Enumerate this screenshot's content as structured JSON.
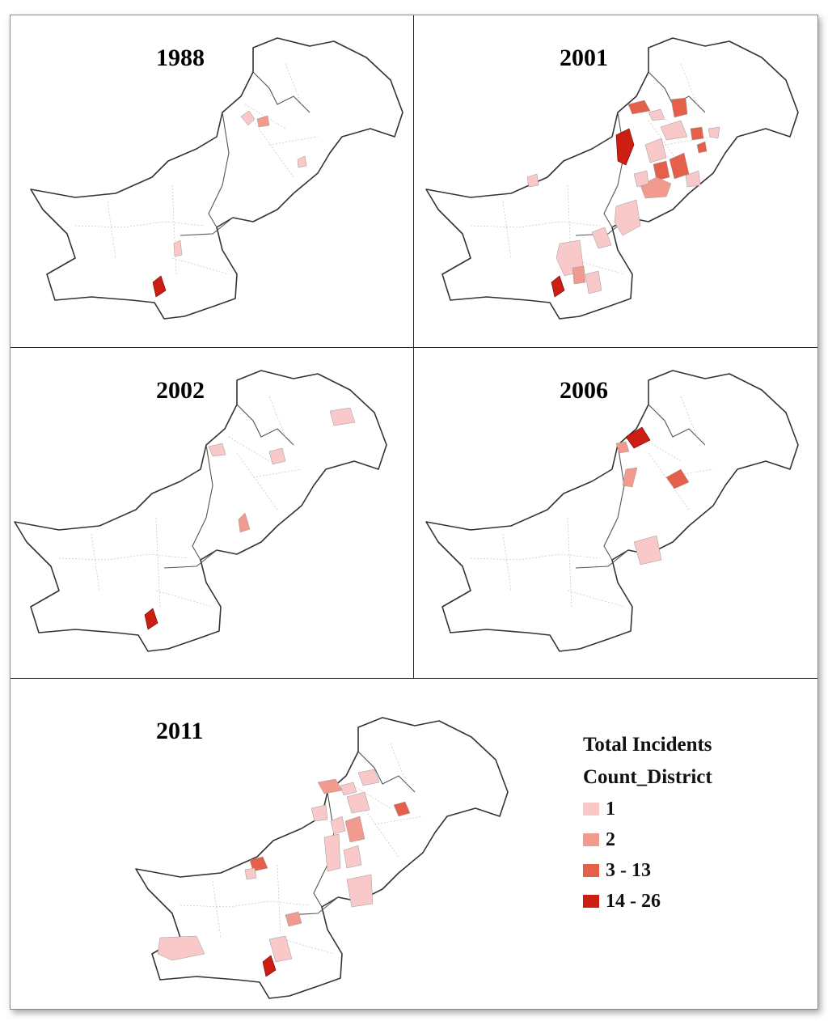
{
  "panels": [
    {
      "year": "1988"
    },
    {
      "year": "2001"
    },
    {
      "year": "2002"
    },
    {
      "year": "2006"
    },
    {
      "year": "2011"
    }
  ],
  "legend": {
    "title_line1": "Total Incidents",
    "title_line2": "Count_District",
    "classes": [
      {
        "label": "1",
        "color": "#f9c8c8"
      },
      {
        "label": "2",
        "color": "#f29a8e"
      },
      {
        "label": "3 - 13",
        "color": "#e5604a"
      },
      {
        "label": "14 - 26",
        "color": "#cc1e12"
      }
    ]
  }
}
